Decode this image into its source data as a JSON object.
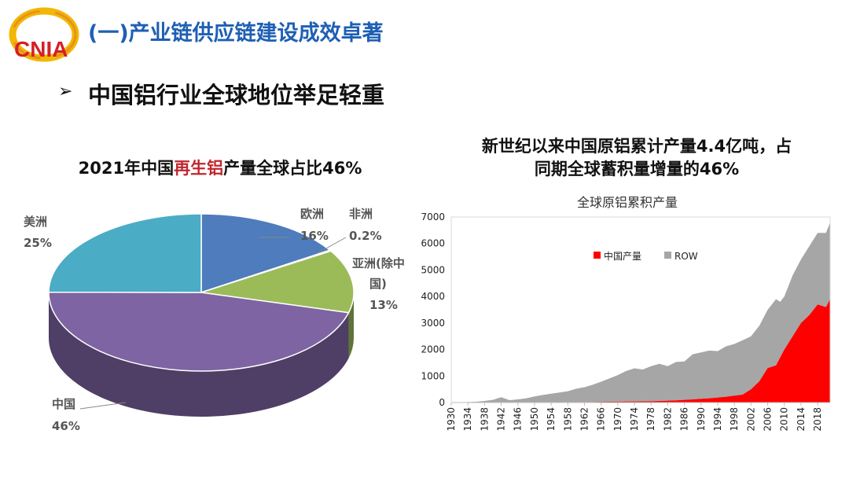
{
  "header": {
    "logo_text": "CNIA",
    "title": "(一)产业链供应链建设成效卓著"
  },
  "bullet": {
    "arrow": "➢",
    "text": "中国铝行业全球地位举足轻重"
  },
  "pie_chart": {
    "title_prefix": "2021年中国",
    "title_highlight": "再生铝",
    "title_suffix": "产量全球占比46%",
    "colors": {
      "europe": "#4e7cbc",
      "africa": "#c0504d",
      "asia": "#9bbb59",
      "china": "#7f64a3",
      "america": "#4bacc6"
    },
    "labels": {
      "america_name": "美洲",
      "america_pct": "25%",
      "europe_name": "欧洲",
      "europe_pct": "16%",
      "africa_name": "非洲",
      "africa_pct": "0.2%",
      "asia_name_1": "亚洲(除中",
      "asia_name_2": "国)",
      "asia_pct": "13%",
      "china_name": "中国",
      "china_pct": "46%"
    }
  },
  "line_chart": {
    "heading_line1": "新世纪以来中国原铝累计产量4.4亿吨，占",
    "heading_line2": "同期全球蓄积量增量的46%"
  },
  "chart_data": [
    {
      "type": "pie",
      "title": "2021年中国再生铝产量全球占比46%",
      "categories": [
        "欧洲",
        "非洲",
        "亚洲(除中国)",
        "中国",
        "美洲"
      ],
      "values": [
        16,
        0.2,
        13,
        46,
        25
      ]
    },
    {
      "type": "area",
      "title": "全球原铝累积产量",
      "x": [
        1930,
        1932,
        1934,
        1936,
        1938,
        1940,
        1942,
        1944,
        1946,
        1948,
        1950,
        1952,
        1954,
        1956,
        1958,
        1960,
        1962,
        1964,
        1966,
        1968,
        1970,
        1972,
        1974,
        1976,
        1978,
        1980,
        1982,
        1984,
        1986,
        1988,
        1990,
        1992,
        1994,
        1996,
        1998,
        2000,
        2002,
        2004,
        2006,
        2008,
        2009,
        2010,
        2012,
        2014,
        2016,
        2018,
        2020,
        2021
      ],
      "series": [
        {
          "name": "中国产量",
          "color": "#ff0000",
          "values": [
            0,
            0,
            0,
            0,
            0,
            0,
            0,
            0,
            0,
            0,
            0,
            5,
            5,
            10,
            15,
            20,
            20,
            20,
            25,
            30,
            35,
            40,
            40,
            45,
            50,
            60,
            70,
            80,
            100,
            120,
            140,
            160,
            190,
            220,
            260,
            300,
            500,
            800,
            1300,
            1400,
            1700,
            2000,
            2500,
            3000,
            3300,
            3700,
            3600,
            3900
          ]
        },
        {
          "name": "ROW",
          "color": "#a6a6a6",
          "values": [
            0,
            10,
            20,
            30,
            60,
            100,
            200,
            90,
            120,
            160,
            230,
            280,
            330,
            370,
            410,
            500,
            560,
            650,
            760,
            880,
            1000,
            1150,
            1250,
            1200,
            1320,
            1400,
            1300,
            1450,
            1450,
            1700,
            1750,
            1800,
            1750,
            1900,
            1950,
            2050,
            2000,
            2100,
            2200,
            2500,
            2100,
            2000,
            2300,
            2400,
            2600,
            2700,
            2800,
            2900
          ]
        }
      ],
      "ylim": [
        0,
        7000
      ],
      "y_ticks": [
        0,
        1000,
        2000,
        3000,
        4000,
        5000,
        6000,
        7000
      ],
      "x_tick_labels": [
        1930,
        1934,
        1938,
        1942,
        1946,
        1950,
        1954,
        1958,
        1962,
        1966,
        1970,
        1974,
        1978,
        1982,
        1986,
        1990,
        1994,
        1998,
        2002,
        2006,
        2010,
        2014,
        2018
      ],
      "legend_position": "top-center-inside",
      "grid": false
    }
  ]
}
